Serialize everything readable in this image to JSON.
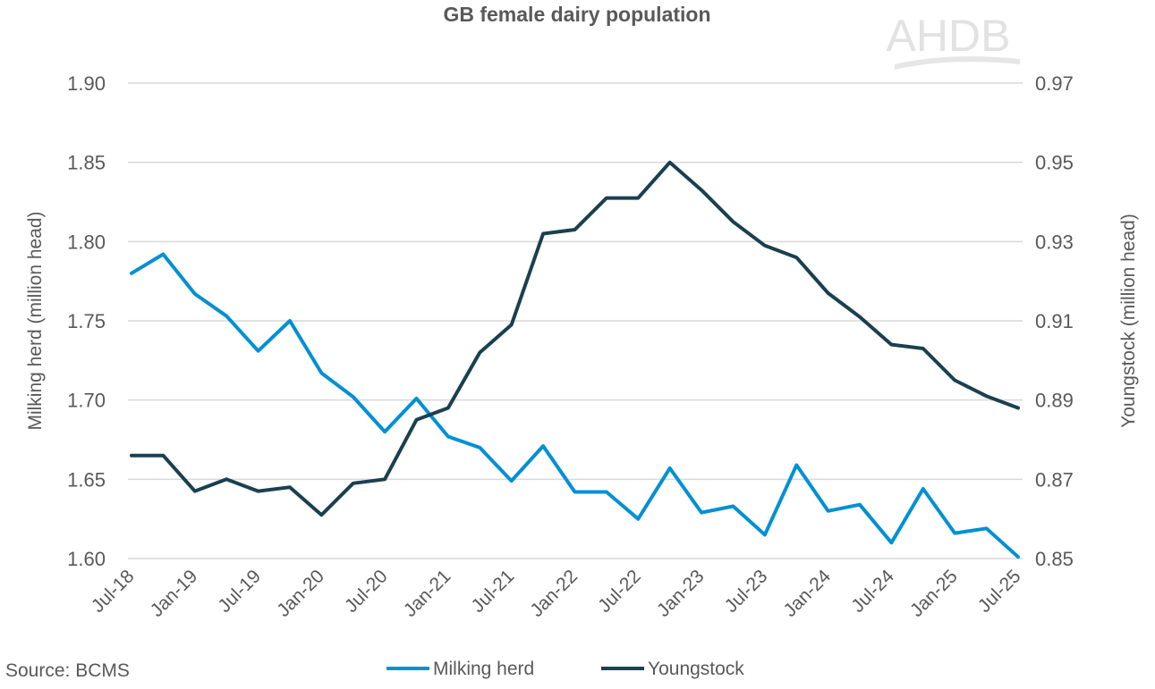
{
  "chart_data": {
    "type": "line",
    "title": "GB female dairy population",
    "logo_text": "AHDB",
    "source": "Source: BCMS",
    "x": [
      "Jul-18",
      "Oct-18",
      "Jan-19",
      "Apr-19",
      "Jul-19",
      "Oct-19",
      "Jan-20",
      "Apr-20",
      "Jul-20",
      "Oct-20",
      "Jan-21",
      "Apr-21",
      "Jul-21",
      "Oct-21",
      "Jan-22",
      "Apr-22",
      "Jul-22",
      "Oct-22",
      "Jan-23",
      "Apr-23",
      "Jul-23",
      "Oct-23",
      "Jan-24",
      "Apr-24",
      "Jul-24",
      "Oct-24",
      "Jan-25",
      "Apr-25",
      "Jul-25"
    ],
    "x_tick_labels": [
      "Jul-18",
      "Jan-19",
      "Jul-19",
      "Jan-20",
      "Jul-20",
      "Jan-21",
      "Jul-21",
      "Jan-22",
      "Jul-22",
      "Jan-23",
      "Jul-23",
      "Jan-24",
      "Jul-24",
      "Jan-25",
      "Jul-25"
    ],
    "y_left": {
      "label": "Milking herd (million head)",
      "lim": [
        1.6,
        1.9
      ],
      "ticks": [
        "1.60",
        "1.65",
        "1.70",
        "1.75",
        "1.80",
        "1.85",
        "1.90"
      ]
    },
    "y_right": {
      "label": "Youngstock (million head)",
      "lim": [
        0.85,
        0.97
      ],
      "ticks": [
        "0.85",
        "0.87",
        "0.89",
        "0.91",
        "0.93",
        "0.95",
        "0.97"
      ]
    },
    "grid": true,
    "legend_position": "bottom",
    "series": [
      {
        "name": "Milking herd",
        "axis": "left",
        "color": "#0090d4",
        "values": [
          1.78,
          1.792,
          1.767,
          1.753,
          1.731,
          1.75,
          1.717,
          1.702,
          1.68,
          1.701,
          1.677,
          1.67,
          1.649,
          1.671,
          1.642,
          1.642,
          1.625,
          1.657,
          1.629,
          1.633,
          1.615,
          1.659,
          1.63,
          1.634,
          1.61,
          1.644,
          1.616,
          1.619,
          1.601
        ]
      },
      {
        "name": "Youngstock",
        "axis": "right",
        "color": "#1a4050",
        "values": [
          0.876,
          0.876,
          0.867,
          0.87,
          0.867,
          0.868,
          0.861,
          0.869,
          0.87,
          0.885,
          0.888,
          0.902,
          0.909,
          0.932,
          0.933,
          0.941,
          0.941,
          0.95,
          0.943,
          0.935,
          0.929,
          0.926,
          0.917,
          0.911,
          0.904,
          0.903,
          0.895,
          0.891,
          0.888
        ]
      }
    ]
  }
}
